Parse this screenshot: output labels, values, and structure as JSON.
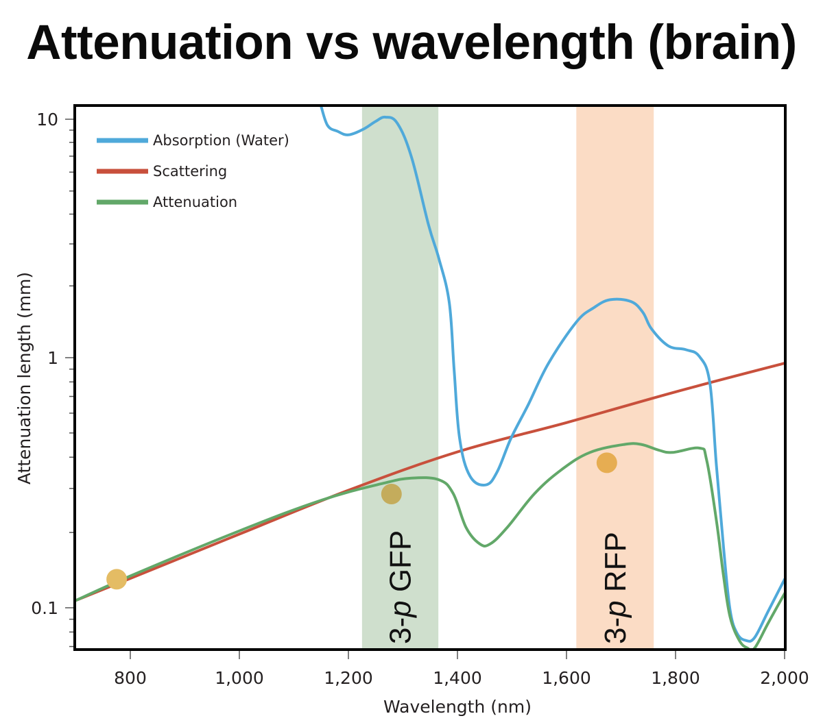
{
  "title": "Attenuation vs wavelength (brain)",
  "chart_data": {
    "type": "line",
    "title": "Attenuation vs wavelength (brain)",
    "xlabel": "Wavelength (nm)",
    "ylabel": "Attenuation length (mm)",
    "xlim": [
      700,
      2000
    ],
    "ylim": [
      0.068,
      11
    ],
    "yscale": "log",
    "grid": false,
    "legend_position": "top-left",
    "x_ticks": [
      800,
      1000,
      1200,
      1400,
      1600,
      1800,
      2000
    ],
    "x_tick_labels": [
      "800",
      "1,000",
      "1,200",
      "1,400",
      "1,600",
      "1,800",
      "2,000"
    ],
    "y_ticks": [
      0.1,
      1,
      10
    ],
    "y_tick_labels": [
      "0.1",
      "1",
      "10"
    ],
    "y_minor_ticks": [
      0.07,
      0.08,
      0.09,
      2,
      3,
      4,
      5,
      6,
      7,
      8,
      9
    ],
    "series": [
      {
        "name": "Absorption (Water)",
        "color": "#4fa9da",
        "x": [
          1150,
          1162,
          1180,
          1200,
          1228,
          1250,
          1268,
          1290,
          1316,
          1347,
          1366,
          1385,
          1394,
          1404,
          1423,
          1452,
          1473,
          1498,
          1530,
          1567,
          1618,
          1650,
          1680,
          1718,
          1740,
          1756,
          1787,
          1819,
          1844,
          1863,
          1875,
          1888,
          1900,
          1913,
          1929,
          1945,
          1970,
          2000
        ],
        "y": [
          11.3,
          9.4,
          8.9,
          8.6,
          9.1,
          9.8,
          10.2,
          9.6,
          6.9,
          3.6,
          2.6,
          1.7,
          0.89,
          0.475,
          0.336,
          0.31,
          0.35,
          0.475,
          0.65,
          0.95,
          1.41,
          1.62,
          1.75,
          1.72,
          1.55,
          1.32,
          1.12,
          1.08,
          1.01,
          0.79,
          0.37,
          0.174,
          0.098,
          0.079,
          0.074,
          0.076,
          0.097,
          0.13
        ]
      },
      {
        "name": "Scattering",
        "color": "#c8503c",
        "x": [
          700,
          800,
          1000,
          1200,
          1400,
          1600,
          1800,
          2000
        ],
        "y": [
          0.107,
          0.131,
          0.197,
          0.295,
          0.42,
          0.55,
          0.73,
          0.95
        ]
      },
      {
        "name": "Attenuation",
        "color": "#62a869",
        "x": [
          700,
          800,
          1000,
          1152,
          1265,
          1316,
          1366,
          1392,
          1416,
          1441,
          1460,
          1491,
          1542,
          1592,
          1643,
          1706,
          1737,
          1769,
          1794,
          1844,
          1857,
          1875,
          1888,
          1900,
          1917,
          1932,
          1945,
          1970,
          2000
        ],
        "y": [
          0.107,
          0.134,
          0.203,
          0.27,
          0.315,
          0.33,
          0.325,
          0.287,
          0.209,
          0.18,
          0.18,
          0.209,
          0.287,
          0.358,
          0.418,
          0.45,
          0.45,
          0.427,
          0.418,
          0.435,
          0.39,
          0.223,
          0.134,
          0.092,
          0.074,
          0.069,
          0.069,
          0.087,
          0.114
        ]
      }
    ],
    "bands": [
      {
        "label_prefix": "3-",
        "label_italic": "p",
        "label_suffix": " GFP",
        "x_range": [
          1225,
          1365
        ],
        "color": "#cfdfcd"
      },
      {
        "label_prefix": "3-",
        "label_italic": "p",
        "label_suffix": " RFP",
        "x_range": [
          1618,
          1760
        ],
        "color": "#fbdcc5"
      }
    ],
    "markers": [
      {
        "x": 775,
        "y": 0.13,
        "color": "#e4bc64"
      },
      {
        "x": 1279,
        "y": 0.285,
        "color": "#c4ac5c"
      },
      {
        "x": 1674,
        "y": 0.38,
        "color": "#e6ad52"
      }
    ]
  }
}
